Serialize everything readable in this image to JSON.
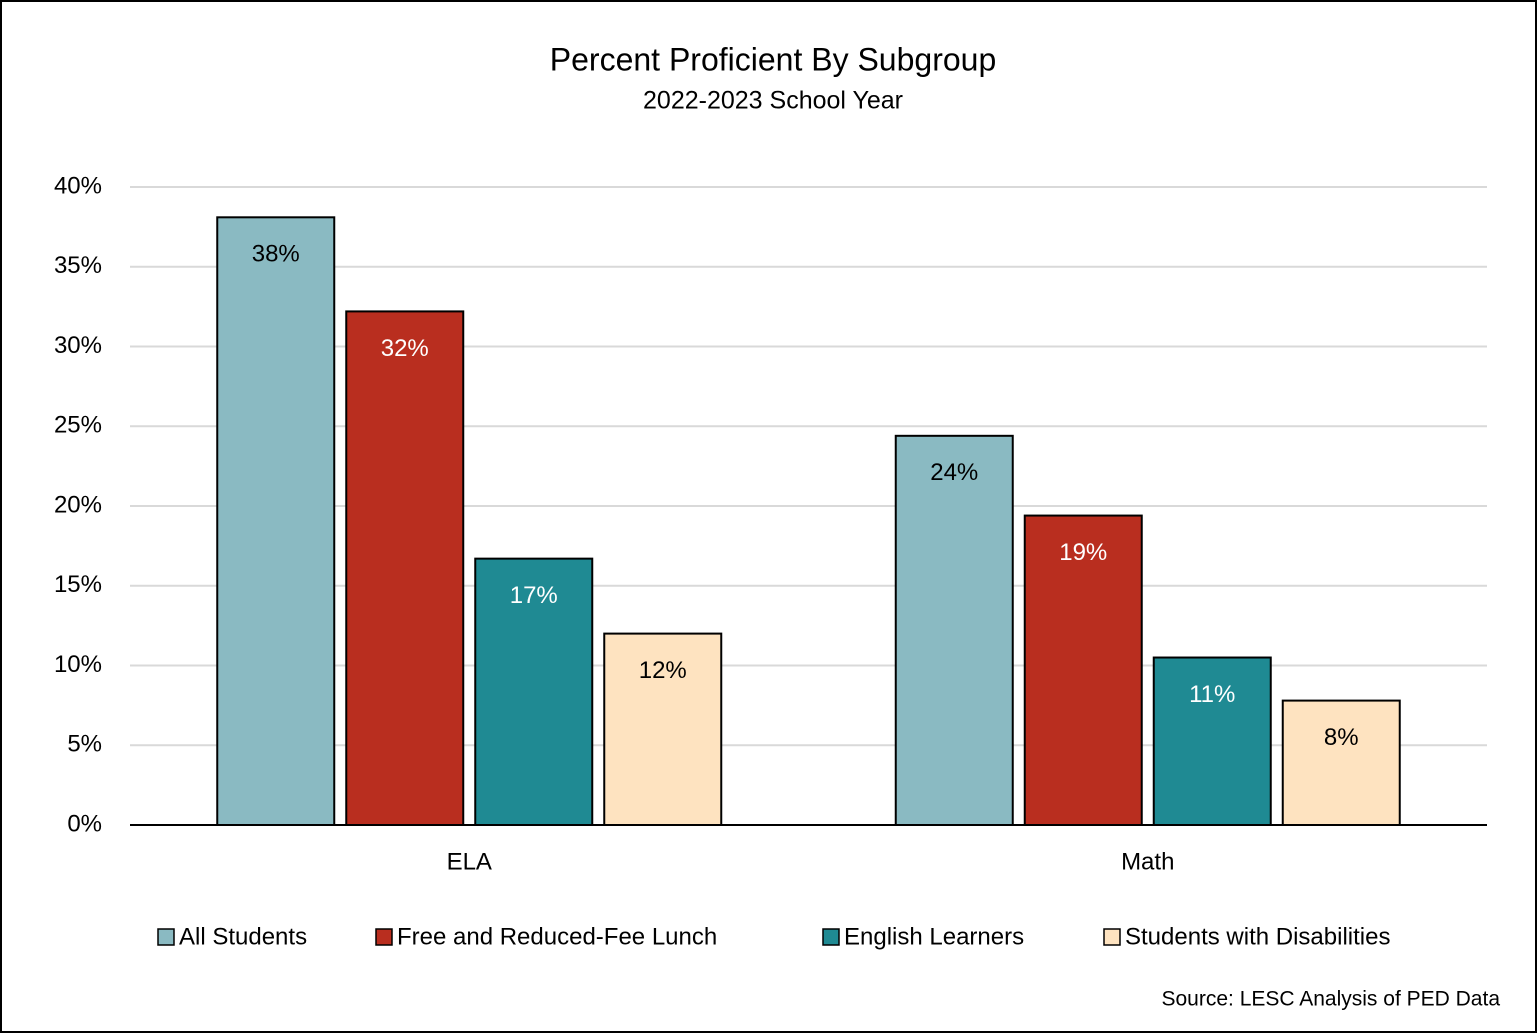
{
  "chart_data": {
    "type": "bar",
    "title": "Percent Proficient By Subgroup",
    "subtitle": "2022-2023 School Year",
    "source": "Source: LESC Analysis of PED Data",
    "categories": [
      "ELA",
      "Math"
    ],
    "series": [
      {
        "name": "All Students",
        "color": "#8abac2",
        "label_color": "#000000",
        "values": [
          38.1,
          24.4
        ],
        "value_labels": [
          "38%",
          "24%"
        ]
      },
      {
        "name": "Free and Reduced-Fee Lunch",
        "color": "#b92e1f",
        "label_color": "#ffffff",
        "values": [
          32.2,
          19.4
        ],
        "value_labels": [
          "32%",
          "19%"
        ]
      },
      {
        "name": "English Learners",
        "color": "#1f8a93",
        "label_color": "#ffffff",
        "values": [
          16.7,
          10.5
        ],
        "value_labels": [
          "17%",
          "11%"
        ]
      },
      {
        "name": "Students with Disabilities",
        "color": "#fee3c0",
        "label_color": "#000000",
        "values": [
          12.0,
          7.8
        ],
        "value_labels": [
          "12%",
          "8%"
        ]
      }
    ],
    "ylim": [
      0,
      40
    ],
    "yticks": [
      {
        "value": 0,
        "label": "0%"
      },
      {
        "value": 5,
        "label": "5%"
      },
      {
        "value": 10,
        "label": "10%"
      },
      {
        "value": 15,
        "label": "15%"
      },
      {
        "value": 20,
        "label": "20%"
      },
      {
        "value": 25,
        "label": "25%"
      },
      {
        "value": 30,
        "label": "30%"
      },
      {
        "value": 35,
        "label": "35%"
      },
      {
        "value": 40,
        "label": "40%"
      }
    ],
    "grid": true,
    "legend": "bottom"
  }
}
